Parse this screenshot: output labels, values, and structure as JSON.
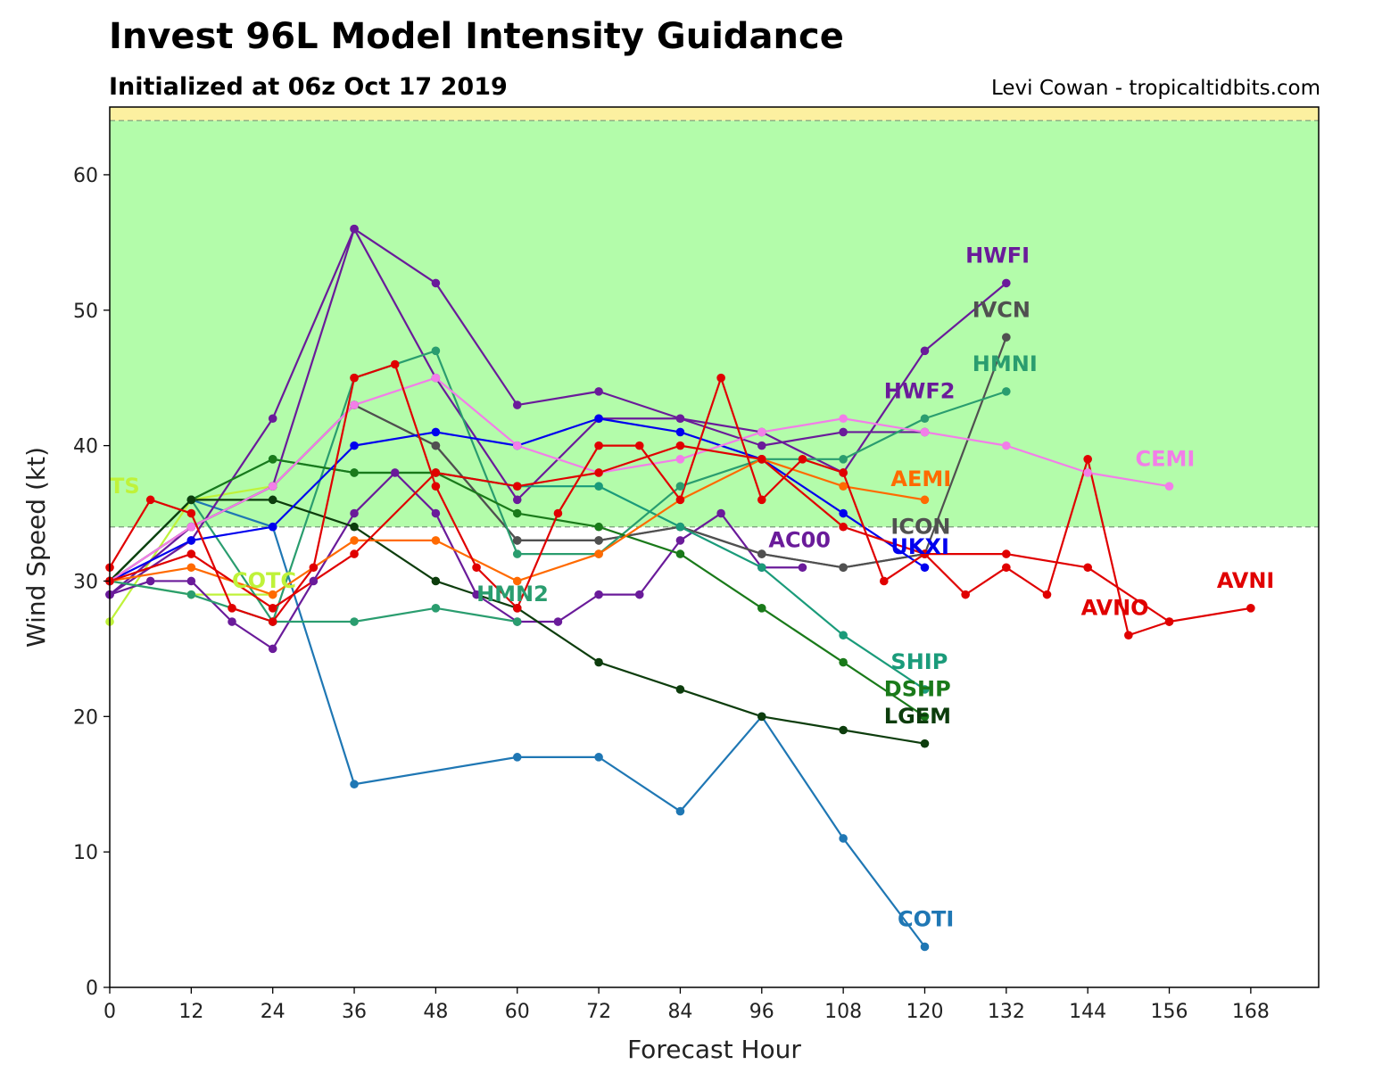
{
  "header": {
    "title": "Invest 96L Model Intensity Guidance",
    "subtitle": "Initialized at 06z Oct 17 2019",
    "credit": "Levi Cowan - tropicaltidbits.com"
  },
  "chart_data": {
    "type": "line",
    "title": "Invest 96L Model Intensity Guidance",
    "subtitle": "Initialized at 06z Oct 17 2019",
    "xlabel": "Forecast Hour",
    "ylabel": "Wind Speed (kt)",
    "xlim": [
      0,
      178
    ],
    "ylim": [
      0,
      65
    ],
    "xticks": [
      0,
      12,
      24,
      36,
      48,
      60,
      72,
      84,
      96,
      108,
      120,
      132,
      144,
      156,
      168
    ],
    "yticks": [
      0,
      10,
      20,
      30,
      40,
      50,
      60
    ],
    "bands": [
      {
        "from": 34,
        "to": 64,
        "color": "#b3fcaa"
      },
      {
        "from": 64,
        "to": 65,
        "color": "#fcf0a0"
      }
    ],
    "grid": false,
    "series": [
      {
        "name": "TS",
        "color": "#bff23a",
        "x": [
          0,
          12,
          24
        ],
        "y": [
          27,
          36,
          37
        ],
        "label_at": [
          0,
          36.5
        ]
      },
      {
        "name": "COTC",
        "color": "#bff23a",
        "x": [
          0,
          12,
          24
        ],
        "y": [
          30,
          29,
          29
        ],
        "label_at": [
          18,
          29.5
        ]
      },
      {
        "name": "COTI",
        "color": "#1f77b4",
        "x": [
          0,
          12,
          24,
          36,
          60,
          72,
          84,
          96,
          108,
          120
        ],
        "y": [
          30,
          36,
          34,
          15,
          17,
          17,
          13,
          20,
          11,
          3
        ],
        "label_at": [
          116,
          4.5
        ]
      },
      {
        "name": "HWFI",
        "color": "#6a1b9a",
        "x": [
          0,
          12,
          24,
          36,
          48,
          60,
          72,
          84,
          96,
          108,
          120,
          132
        ],
        "y": [
          29,
          33,
          42,
          56,
          52,
          43,
          44,
          42,
          41,
          38,
          47,
          52
        ],
        "label_at": [
          126,
          53.5
        ]
      },
      {
        "name": "HWF2",
        "color": "#6a1b9a",
        "x": [
          0,
          12,
          24,
          36,
          48,
          60,
          72,
          84,
          96,
          108,
          120
        ],
        "y": [
          29,
          34,
          37,
          56,
          45,
          36,
          42,
          42,
          40,
          41,
          41
        ],
        "label_at": [
          114,
          43.5
        ]
      },
      {
        "name": "AC00",
        "color": "#6a1b9a",
        "x": [
          0,
          6,
          12,
          18,
          24,
          30,
          36,
          42,
          48,
          54,
          60,
          66,
          72,
          78,
          84,
          90,
          96,
          102
        ],
        "y": [
          29,
          30,
          30,
          27,
          25,
          30,
          35,
          38,
          35,
          29,
          27,
          27,
          29,
          29,
          33,
          35,
          31,
          31
        ],
        "label_at": [
          97,
          32.5
        ]
      },
      {
        "name": "IVCN",
        "color": "#505050",
        "x": [
          0,
          12,
          24,
          36,
          48,
          60,
          72,
          84,
          96,
          108,
          120,
          132
        ],
        "y": [
          30,
          34,
          37,
          43,
          40,
          33,
          33,
          34,
          32,
          31,
          32,
          48
        ],
        "label_at": [
          127,
          49.5
        ]
      },
      {
        "name": "ICON",
        "color": "#505050",
        "x": [
          0,
          12,
          24,
          36,
          48,
          60,
          72,
          84,
          96,
          108,
          120
        ],
        "y": [
          30,
          34,
          37,
          43,
          40,
          33,
          33,
          34,
          32,
          31,
          32
        ],
        "label_at": [
          115,
          33.5
        ]
      },
      {
        "name": "HMNI",
        "color": "#2a9d6f",
        "x": [
          0,
          12,
          24,
          36,
          48,
          60,
          72,
          84,
          96,
          108,
          120,
          132
        ],
        "y": [
          30,
          36,
          27,
          45,
          47,
          32,
          32,
          37,
          39,
          39,
          42,
          44
        ],
        "label_at": [
          127,
          45.5
        ]
      },
      {
        "name": "HMN2",
        "color": "#2a9d6f",
        "x": [
          0,
          12,
          24,
          36,
          48,
          60
        ],
        "y": [
          30,
          29,
          27,
          27,
          28,
          27
        ],
        "label_at": [
          54,
          28.5
        ]
      },
      {
        "name": "SHIP",
        "color": "#1a9b7a",
        "x": [
          0,
          12,
          24,
          36,
          48,
          60,
          72,
          84,
          96,
          108,
          120
        ],
        "y": [
          30,
          36,
          39,
          38,
          38,
          37,
          37,
          34,
          31,
          26,
          22
        ],
        "label_at": [
          115,
          23.5
        ]
      },
      {
        "name": "DSHP",
        "color": "#1a7a1a",
        "x": [
          0,
          12,
          24,
          36,
          48,
          60,
          72,
          84,
          96,
          108,
          120
        ],
        "y": [
          30,
          36,
          39,
          38,
          38,
          35,
          34,
          32,
          28,
          24,
          20
        ],
        "label_at": [
          114,
          21.5
        ]
      },
      {
        "name": "LGEM",
        "color": "#0d3d0d",
        "x": [
          0,
          12,
          24,
          36,
          48,
          60,
          72,
          84,
          96,
          108,
          120
        ],
        "y": [
          30,
          36,
          36,
          34,
          30,
          28,
          24,
          22,
          20,
          19,
          18
        ],
        "label_at": [
          114,
          19.5
        ]
      },
      {
        "name": "UKXI",
        "color": "#0000ee",
        "x": [
          0,
          12,
          24,
          36,
          48,
          60,
          72,
          84,
          96,
          108,
          120
        ],
        "y": [
          30,
          33,
          34,
          40,
          41,
          40,
          42,
          41,
          39,
          35,
          31
        ],
        "label_at": [
          115,
          32
        ]
      },
      {
        "name": "AEMI",
        "color": "#ff6a00",
        "x": [
          0,
          12,
          24,
          36,
          48,
          60,
          72,
          84,
          96,
          108,
          120
        ],
        "y": [
          30,
          31,
          29,
          33,
          33,
          30,
          32,
          36,
          39,
          37,
          36
        ],
        "label_at": [
          115,
          37
        ]
      },
      {
        "name": "CEMI",
        "color": "#f27ee8",
        "x": [
          0,
          12,
          24,
          36,
          48,
          60,
          72,
          84,
          96,
          108,
          120,
          132,
          144,
          156
        ],
        "y": [
          30,
          34,
          37,
          43,
          45,
          40,
          38,
          39,
          41,
          42,
          41,
          40,
          38,
          37
        ],
        "label_at": [
          151,
          38.5
        ]
      },
      {
        "name": "AVNO",
        "color": "#e00000",
        "x": [
          0,
          6,
          12,
          18,
          24,
          30,
          36,
          42,
          48,
          54,
          60,
          66,
          72,
          78,
          84,
          90,
          96,
          102,
          108,
          114,
          120,
          126,
          132,
          138,
          144,
          150,
          156
        ],
        "y": [
          31,
          36,
          35,
          28,
          27,
          31,
          45,
          46,
          37,
          31,
          28,
          35,
          40,
          40,
          36,
          45,
          36,
          39,
          38,
          30,
          32,
          29,
          31,
          29,
          39,
          26,
          27
        ],
        "label_at": [
          143,
          27.5
        ]
      },
      {
        "name": "AVNI",
        "color": "#e00000",
        "x": [
          0,
          12,
          24,
          36,
          48,
          60,
          72,
          84,
          96,
          108,
          120,
          132,
          144,
          156,
          168
        ],
        "y": [
          30,
          32,
          28,
          32,
          38,
          37,
          38,
          40,
          39,
          34,
          32,
          32,
          31,
          27,
          28
        ],
        "label_at": [
          163,
          29.5
        ]
      }
    ]
  }
}
